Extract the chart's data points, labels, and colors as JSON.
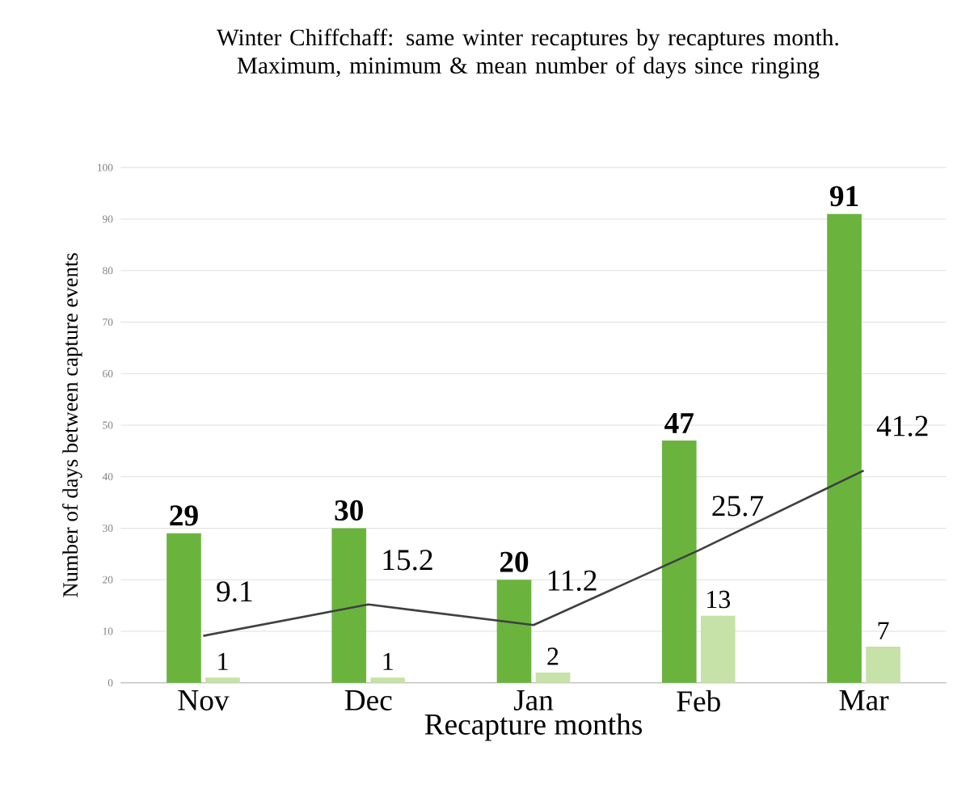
{
  "chart_data": {
    "type": "bar",
    "title": "Winter Chiffchaff: same winter recaptures by recaptures month. Maximum, minimum & mean number of days since ringing",
    "xlabel": "Recapture months",
    "ylabel": "Number of days between capture events",
    "categories": [
      "Nov",
      "Dec",
      "Jan",
      "Feb",
      "Mar"
    ],
    "series": [
      {
        "color": "#6ab43e",
        "values": [
          29,
          30,
          20,
          47,
          91
        ]
      },
      {
        "color": "#c6e2a8",
        "values": [
          1,
          1,
          2,
          13,
          7
        ]
      },
      {
        "type": "line",
        "color": "#404040",
        "values": [
          9.1,
          15.2,
          11.2,
          25.7,
          41.2
        ]
      }
    ],
    "ylim": [
      0,
      100
    ],
    "yticks": [
      0,
      10,
      20,
      30,
      40,
      50,
      60,
      70,
      80,
      90,
      100
    ],
    "grid": "y",
    "data_labels": true
  }
}
